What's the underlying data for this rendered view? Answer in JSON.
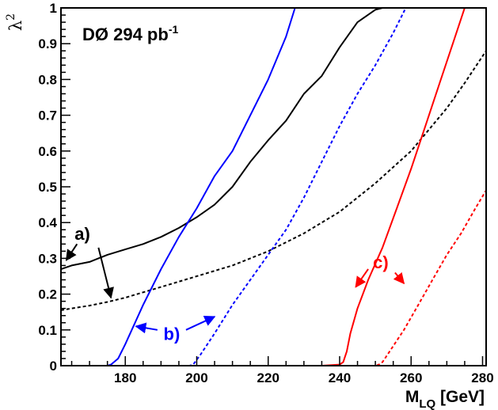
{
  "chart_data": {
    "type": "line",
    "title": "",
    "xlabel": {
      "main": "M",
      "sub": "LQ",
      "unit": " [GeV]"
    },
    "ylabel": {
      "main": "λ",
      "sup": "2"
    },
    "xlim": [
      162,
      281
    ],
    "ylim": [
      0,
      1
    ],
    "x_ticks": [
      "180",
      "200",
      "220",
      "240",
      "260",
      "280"
    ],
    "y_ticks": [
      "0",
      "0.1",
      "0.2",
      "0.3",
      "0.4",
      "0.5",
      "0.6",
      "0.7",
      "0.8",
      "0.9",
      "1"
    ],
    "grid": false,
    "experiment_label": {
      "main": "DØ 294 pb",
      "sup": "-1"
    },
    "colors": {
      "a": "#000000",
      "b": "#0000ff",
      "c": "#ff0000"
    },
    "series": [
      {
        "group": "a",
        "style": "solid",
        "color": "#000000",
        "x": [
          162,
          165,
          170,
          175,
          180,
          185,
          190,
          195,
          200,
          205,
          210,
          215,
          220,
          225,
          230,
          235,
          240,
          245,
          250,
          252,
          255,
          260,
          265,
          270,
          275,
          281
        ],
        "y": [
          0.27,
          0.28,
          0.29,
          0.31,
          0.325,
          0.34,
          0.36,
          0.385,
          0.415,
          0.45,
          0.5,
          0.57,
          0.63,
          0.685,
          0.76,
          0.81,
          0.89,
          0.96,
          0.995,
          1.0,
          1.0,
          1.0,
          1.0,
          1.0,
          1.0,
          1.0
        ]
      },
      {
        "group": "a",
        "style": "dashed",
        "color": "#000000",
        "x": [
          162,
          165,
          170,
          175,
          180,
          185,
          190,
          195,
          200,
          205,
          210,
          215,
          220,
          225,
          230,
          235,
          240,
          245,
          250,
          255,
          260,
          265,
          270,
          275,
          281
        ],
        "y": [
          0.155,
          0.16,
          0.168,
          0.178,
          0.19,
          0.205,
          0.22,
          0.235,
          0.25,
          0.265,
          0.28,
          0.3,
          0.32,
          0.345,
          0.37,
          0.4,
          0.43,
          0.47,
          0.51,
          0.555,
          0.6,
          0.66,
          0.72,
          0.79,
          0.88
        ]
      },
      {
        "group": "b",
        "style": "solid",
        "color": "#0000ff",
        "x": [
          162,
          170,
          175,
          176,
          178,
          180,
          185,
          190,
          195,
          200,
          205,
          210,
          215,
          220,
          225,
          227.5
        ],
        "y": [
          0.0,
          0.0,
          0.0,
          0.003,
          0.02,
          0.06,
          0.17,
          0.27,
          0.36,
          0.44,
          0.53,
          0.6,
          0.7,
          0.8,
          0.92,
          1.0
        ]
      },
      {
        "group": "b",
        "style": "dashed",
        "color": "#0000ff",
        "x": [
          162,
          190,
          198,
          199,
          201,
          205,
          210,
          215,
          220,
          225,
          230,
          235,
          240,
          245,
          250,
          255,
          258.5
        ],
        "y": [
          0.0,
          0.0,
          0.0,
          0.003,
          0.03,
          0.09,
          0.17,
          0.24,
          0.31,
          0.38,
          0.47,
          0.57,
          0.67,
          0.76,
          0.84,
          0.93,
          1.0
        ]
      },
      {
        "group": "c",
        "style": "solid",
        "color": "#ff0000",
        "x": [
          162,
          200,
          235,
          240,
          241,
          242,
          243,
          245,
          248,
          252,
          256,
          260,
          264,
          268,
          272,
          275
        ],
        "y": [
          0.0,
          0.0,
          0.0,
          0.003,
          0.01,
          0.04,
          0.09,
          0.16,
          0.24,
          0.33,
          0.44,
          0.55,
          0.67,
          0.79,
          0.91,
          1.0
        ]
      },
      {
        "group": "c",
        "style": "dashed",
        "color": "#ff0000",
        "x": [
          162,
          240,
          250,
          251,
          252,
          254,
          258,
          262,
          266,
          270,
          274,
          278,
          281
        ],
        "y": [
          0.0,
          0.0,
          0.0,
          0.003,
          0.01,
          0.04,
          0.1,
          0.17,
          0.24,
          0.31,
          0.37,
          0.44,
          0.49
        ]
      }
    ],
    "annotations": [
      {
        "label": "a)",
        "color": "#000000",
        "at": [
          168,
          0.37
        ],
        "arrows": [
          {
            "from": [
              166.5,
              0.34
            ],
            "to": [
              163.5,
              0.295
            ]
          },
          {
            "from": [
              172.5,
              0.33
            ],
            "to": [
              176,
              0.19
            ]
          }
        ]
      },
      {
        "label": "b)",
        "color": "#0000ff",
        "at": [
          193,
          0.09
        ],
        "arrows": [
          {
            "from": [
              189,
              0.1
            ],
            "to": [
              183,
              0.11
            ]
          },
          {
            "from": [
              197,
              0.1
            ],
            "to": [
              205,
              0.137
            ]
          }
        ]
      },
      {
        "label": "c)",
        "color": "#ff0000",
        "at": [
          251.5,
          0.29
        ],
        "arrows": [
          {
            "from": [
              248,
              0.27
            ],
            "to": [
              244.5,
              0.22
            ]
          },
          {
            "from": [
              255.5,
              0.26
            ],
            "to": [
              258,
              0.23
            ]
          }
        ]
      }
    ]
  }
}
